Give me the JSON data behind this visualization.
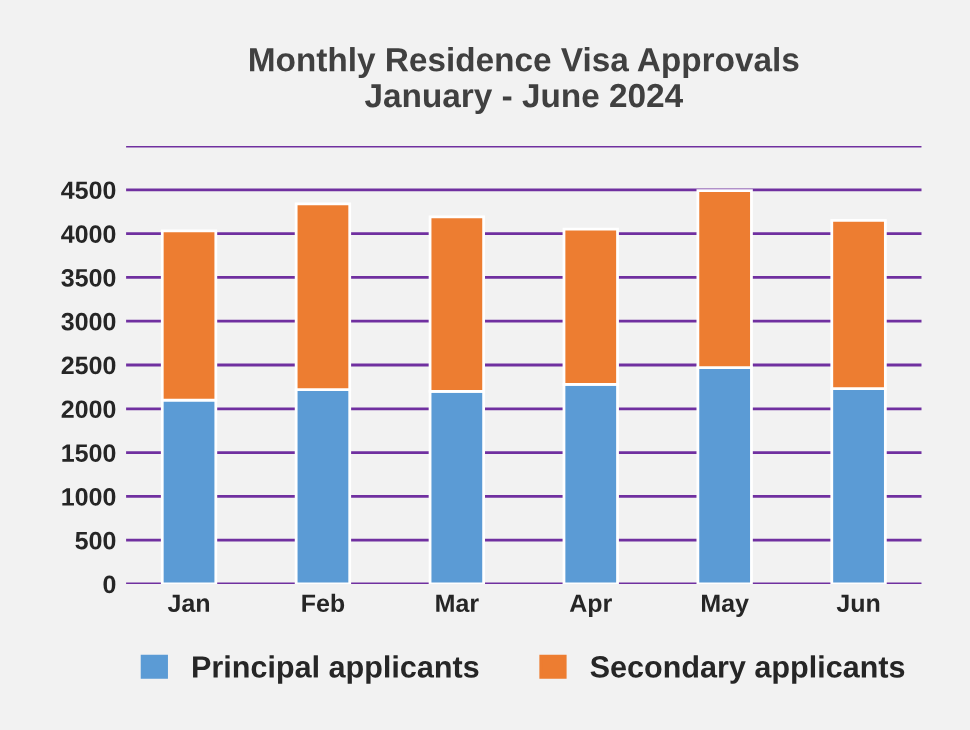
{
  "chart_data": {
    "type": "bar",
    "title": "Monthly Residence Visa Approvals\nJanuary - June 2024",
    "stacked": true,
    "categories": [
      "Jan",
      "Feb",
      "Mar",
      "Apr",
      "May",
      "Jun"
    ],
    "series": [
      {
        "name": "Principal applicants",
        "color": "#5b9bd5",
        "values": [
          2100,
          2220,
          2200,
          2280,
          2470,
          2230
        ]
      },
      {
        "name": "Secondary applicants",
        "color": "#ed7d31",
        "values": [
          1930,
          2120,
          1990,
          1770,
          2020,
          1920
        ]
      }
    ],
    "ylim": [
      0,
      5000
    ],
    "yticks": [
      0,
      500,
      1000,
      1500,
      2000,
      2500,
      3000,
      3500,
      4000,
      4500,
      {
        "value": 5000,
        "label": null
      }
    ],
    "grid": "y",
    "legend": "bottom"
  }
}
